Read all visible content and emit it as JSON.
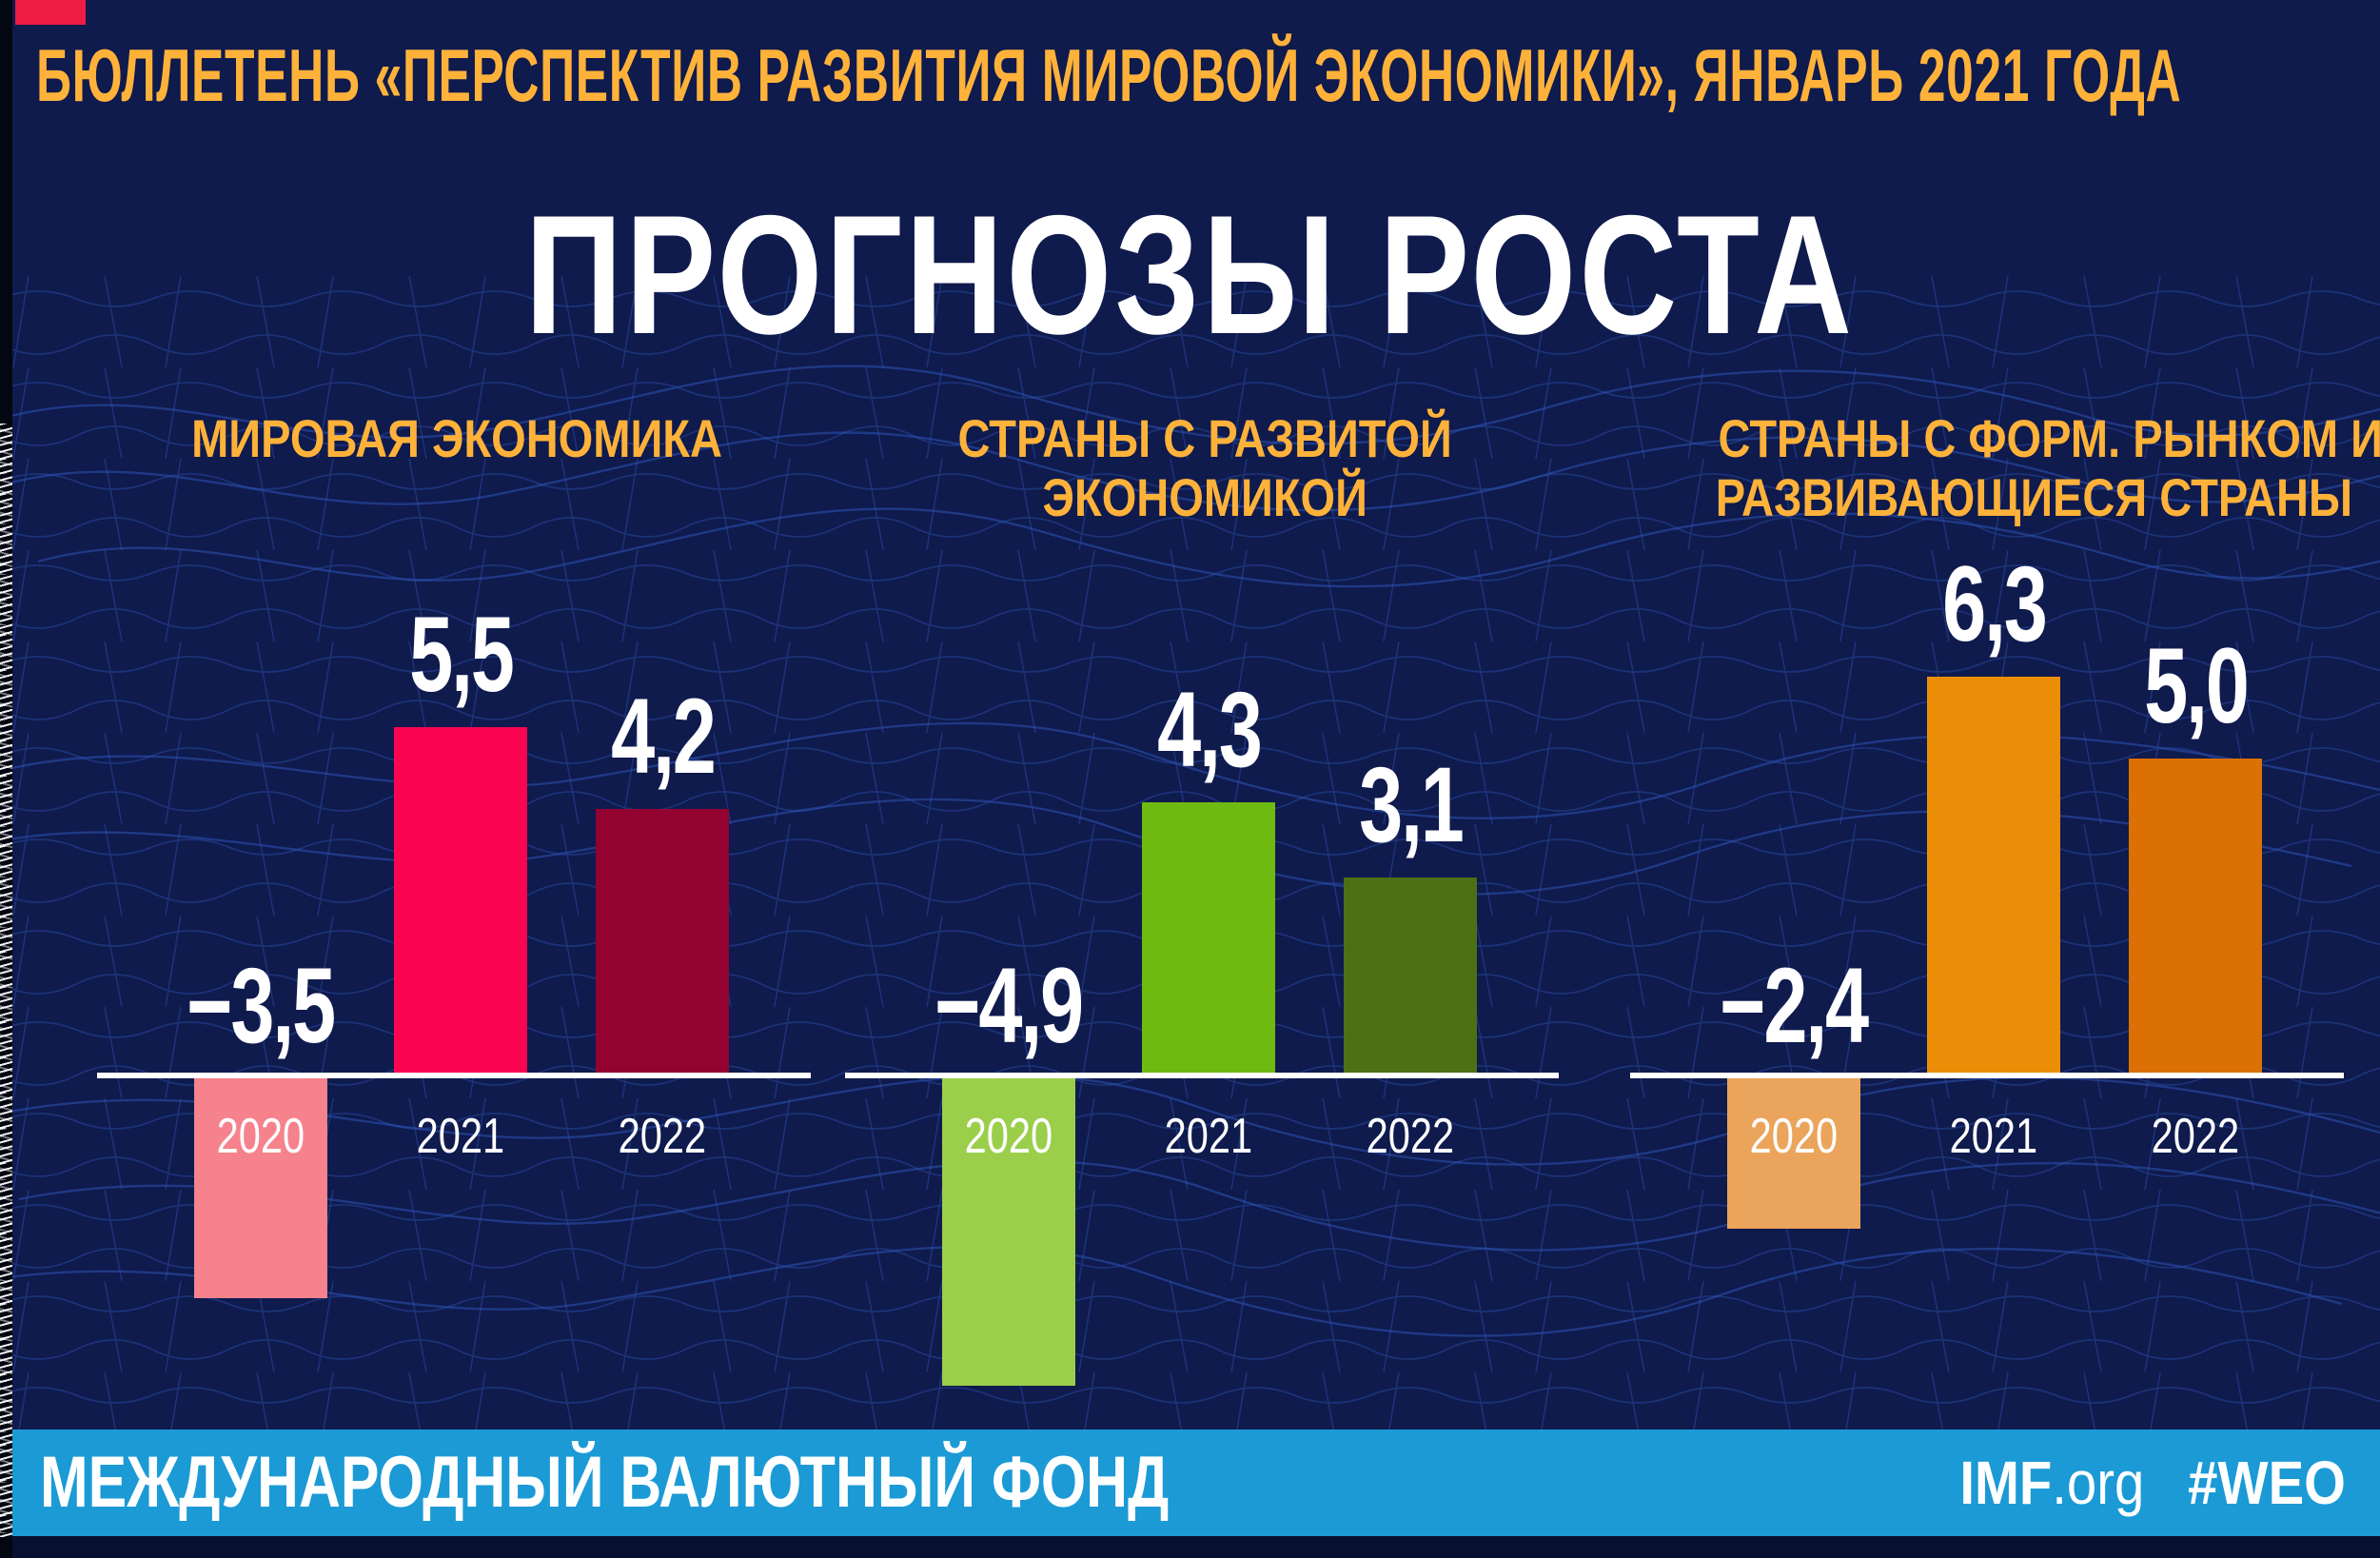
{
  "header": {
    "bulletin_line": "БЮЛЛЕТЕНЬ «ПЕРСПЕКТИВ РАЗВИТИЯ МИРОВОЙ ЭКОНОМИКИ», ЯНВАРЬ 2021 ГОДА",
    "title": "ПРОГНОЗЫ РОСТА"
  },
  "chart_data": {
    "type": "bar",
    "title": "ПРОГНОЗЫ РОСТА",
    "subtitle": "БЮЛЛЕТЕНЬ «ПЕРСПЕКТИВ РАЗВИТИЯ МИРОВОЙ ЭКОНОМИКИ», ЯНВАРЬ 2021 ГОДА",
    "categories": [
      "2020",
      "2021",
      "2022"
    ],
    "value_format": "percent, comma decimal separator",
    "axis": {
      "baseline": 0,
      "gridlines": false,
      "ylim": [
        -5.5,
        7
      ]
    },
    "legend": null,
    "groups": [
      {
        "title_lines": [
          "МИРОВАЯ ЭКОНОМИКА",
          ""
        ],
        "values": [
          -3.5,
          5.5,
          4.2
        ],
        "labels": [
          "−3,5",
          "5,5",
          "4,2"
        ],
        "colors": [
          "#F5828C",
          "#FA0450",
          "#930231"
        ]
      },
      {
        "title_lines": [
          "СТРАНЫ С РАЗВИТОЙ",
          "ЭКОНОМИКОЙ"
        ],
        "values": [
          -4.9,
          4.3,
          3.1
        ],
        "labels": [
          "−4,9",
          "4,3",
          "3,1"
        ],
        "colors": [
          "#9BCE4B",
          "#6FBA11",
          "#4C7013"
        ]
      },
      {
        "title_lines": [
          "СТРАНЫ С ФОРМ. РЫНКОМ И",
          "РАЗВИВАЮЩИЕСЯ СТРАНЫ"
        ],
        "values": [
          -2.4,
          6.3,
          5.0
        ],
        "labels": [
          "−2,4",
          "6,3",
          "5,0"
        ],
        "colors": [
          "#EBA45B",
          "#EC8D08",
          "#DB7004"
        ]
      }
    ]
  },
  "footer": {
    "org_name": "МЕЖДУНАРОДНЫЙ ВАЛЮТНЫЙ ФОНД",
    "imf_bold": "IMF",
    "imf_suffix": ".org",
    "hashtag": "#WEO"
  },
  "colors": {
    "background": "#0F1A4D",
    "accent_text": "#FFB23A",
    "text": "#FFFFFF",
    "footer_band": "#1B9AD6",
    "mesh_line": "#2E55B5"
  }
}
